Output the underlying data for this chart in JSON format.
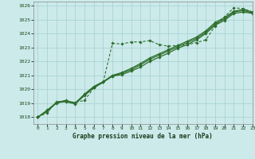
{
  "title": "Graphe pression niveau de la mer (hPa)",
  "bg_color": "#cceaea",
  "grid_color": "#aad4d4",
  "line_color": "#2d6e2d",
  "xlim": [
    -0.5,
    23
  ],
  "ylim": [
    1017.5,
    1026.3
  ],
  "yticks": [
    1018,
    1019,
    1020,
    1021,
    1022,
    1023,
    1024,
    1025,
    1026
  ],
  "xticks": [
    0,
    1,
    2,
    3,
    4,
    5,
    6,
    7,
    8,
    9,
    10,
    11,
    12,
    13,
    14,
    15,
    16,
    17,
    18,
    19,
    20,
    21,
    22,
    23
  ],
  "line_dashed": [
    1018.0,
    1018.3,
    1019.1,
    1019.15,
    1019.05,
    1019.2,
    1020.1,
    1020.5,
    1023.3,
    1023.25,
    1023.4,
    1023.4,
    1023.5,
    1023.2,
    1023.1,
    1023.15,
    1023.2,
    1023.35,
    1023.55,
    1024.55,
    1025.2,
    1025.85,
    1025.8,
    1025.55
  ],
  "line_solid1": [
    1018.0,
    1018.4,
    1019.05,
    1019.1,
    1018.95,
    1019.55,
    1020.1,
    1020.5,
    1020.95,
    1021.05,
    1021.3,
    1021.6,
    1022.0,
    1022.3,
    1022.6,
    1022.95,
    1023.2,
    1023.55,
    1024.0,
    1024.6,
    1024.95,
    1025.45,
    1025.55,
    1025.45
  ],
  "line_solid2": [
    1018.0,
    1018.45,
    1019.0,
    1019.15,
    1019.0,
    1019.6,
    1020.15,
    1020.52,
    1020.95,
    1021.15,
    1021.4,
    1021.75,
    1022.15,
    1022.45,
    1022.75,
    1023.05,
    1023.35,
    1023.65,
    1024.1,
    1024.7,
    1025.05,
    1025.55,
    1025.65,
    1025.5
  ],
  "line_solid3": [
    1018.0,
    1018.5,
    1019.05,
    1019.2,
    1019.0,
    1019.65,
    1020.2,
    1020.55,
    1021.0,
    1021.2,
    1021.5,
    1021.85,
    1022.25,
    1022.55,
    1022.85,
    1023.15,
    1023.45,
    1023.75,
    1024.2,
    1024.8,
    1025.15,
    1025.6,
    1025.75,
    1025.55
  ]
}
